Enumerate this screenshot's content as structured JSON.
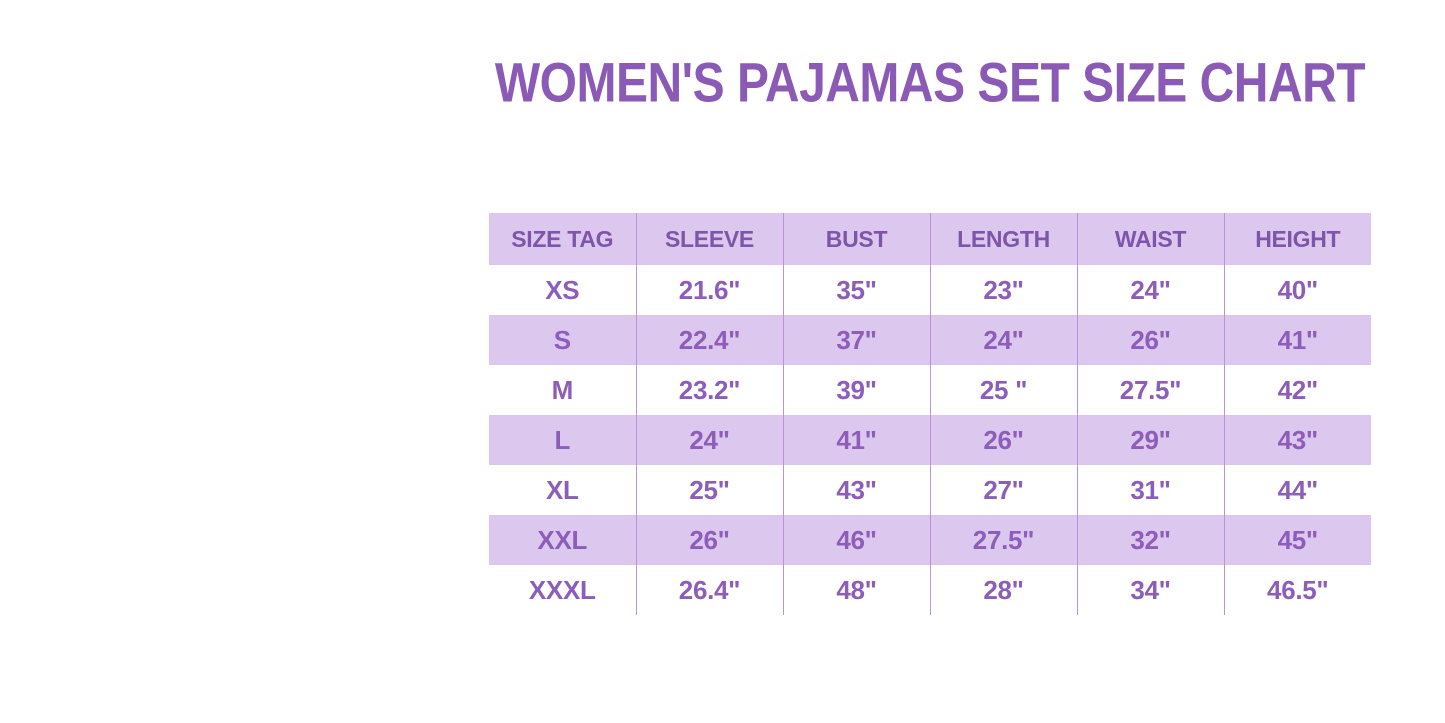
{
  "page": {
    "background": "#ffffff",
    "colors": {
      "title_text": "#8a5ab6",
      "header_text": "#7e55a9",
      "cell_text": "#8d5dba",
      "row_lavender": "#dcc8ef",
      "row_white": "#ffffff",
      "divider": "#b795d8"
    }
  },
  "title": "WOMEN'S PAJAMAS SET SIZE CHART",
  "chart_data": {
    "type": "table",
    "title": "WOMEN'S PAJAMAS SET SIZE CHART",
    "columns": [
      "SIZE TAG",
      "SLEEVE",
      "BUST",
      "LENGTH",
      "WAIST",
      "HEIGHT"
    ],
    "rows": [
      [
        "XS",
        "21.6\"",
        "35\"",
        "23\"",
        "24\"",
        "40\""
      ],
      [
        "S",
        "22.4\"",
        "37\"",
        "24\"",
        "26\"",
        "41\""
      ],
      [
        "M",
        "23.2\"",
        "39\"",
        "25 \"",
        "27.5\"",
        "42\""
      ],
      [
        "L",
        "24\"",
        "41\"",
        "26\"",
        "29\"",
        "43\""
      ],
      [
        "XL",
        "25\"",
        "43\"",
        "27\"",
        "31\"",
        "44\""
      ],
      [
        "XXL",
        "26\"",
        "46\"",
        "27.5\"",
        "32\"",
        "45\""
      ],
      [
        "XXXL",
        "26.4\"",
        "48\"",
        "28\"",
        "34\"",
        "46.5\""
      ]
    ],
    "layout": {
      "legend": "none",
      "grid": "vertical column dividers only",
      "alternating_row_shading": "even data rows lavender, odd white",
      "header_shading": "lavender"
    }
  }
}
